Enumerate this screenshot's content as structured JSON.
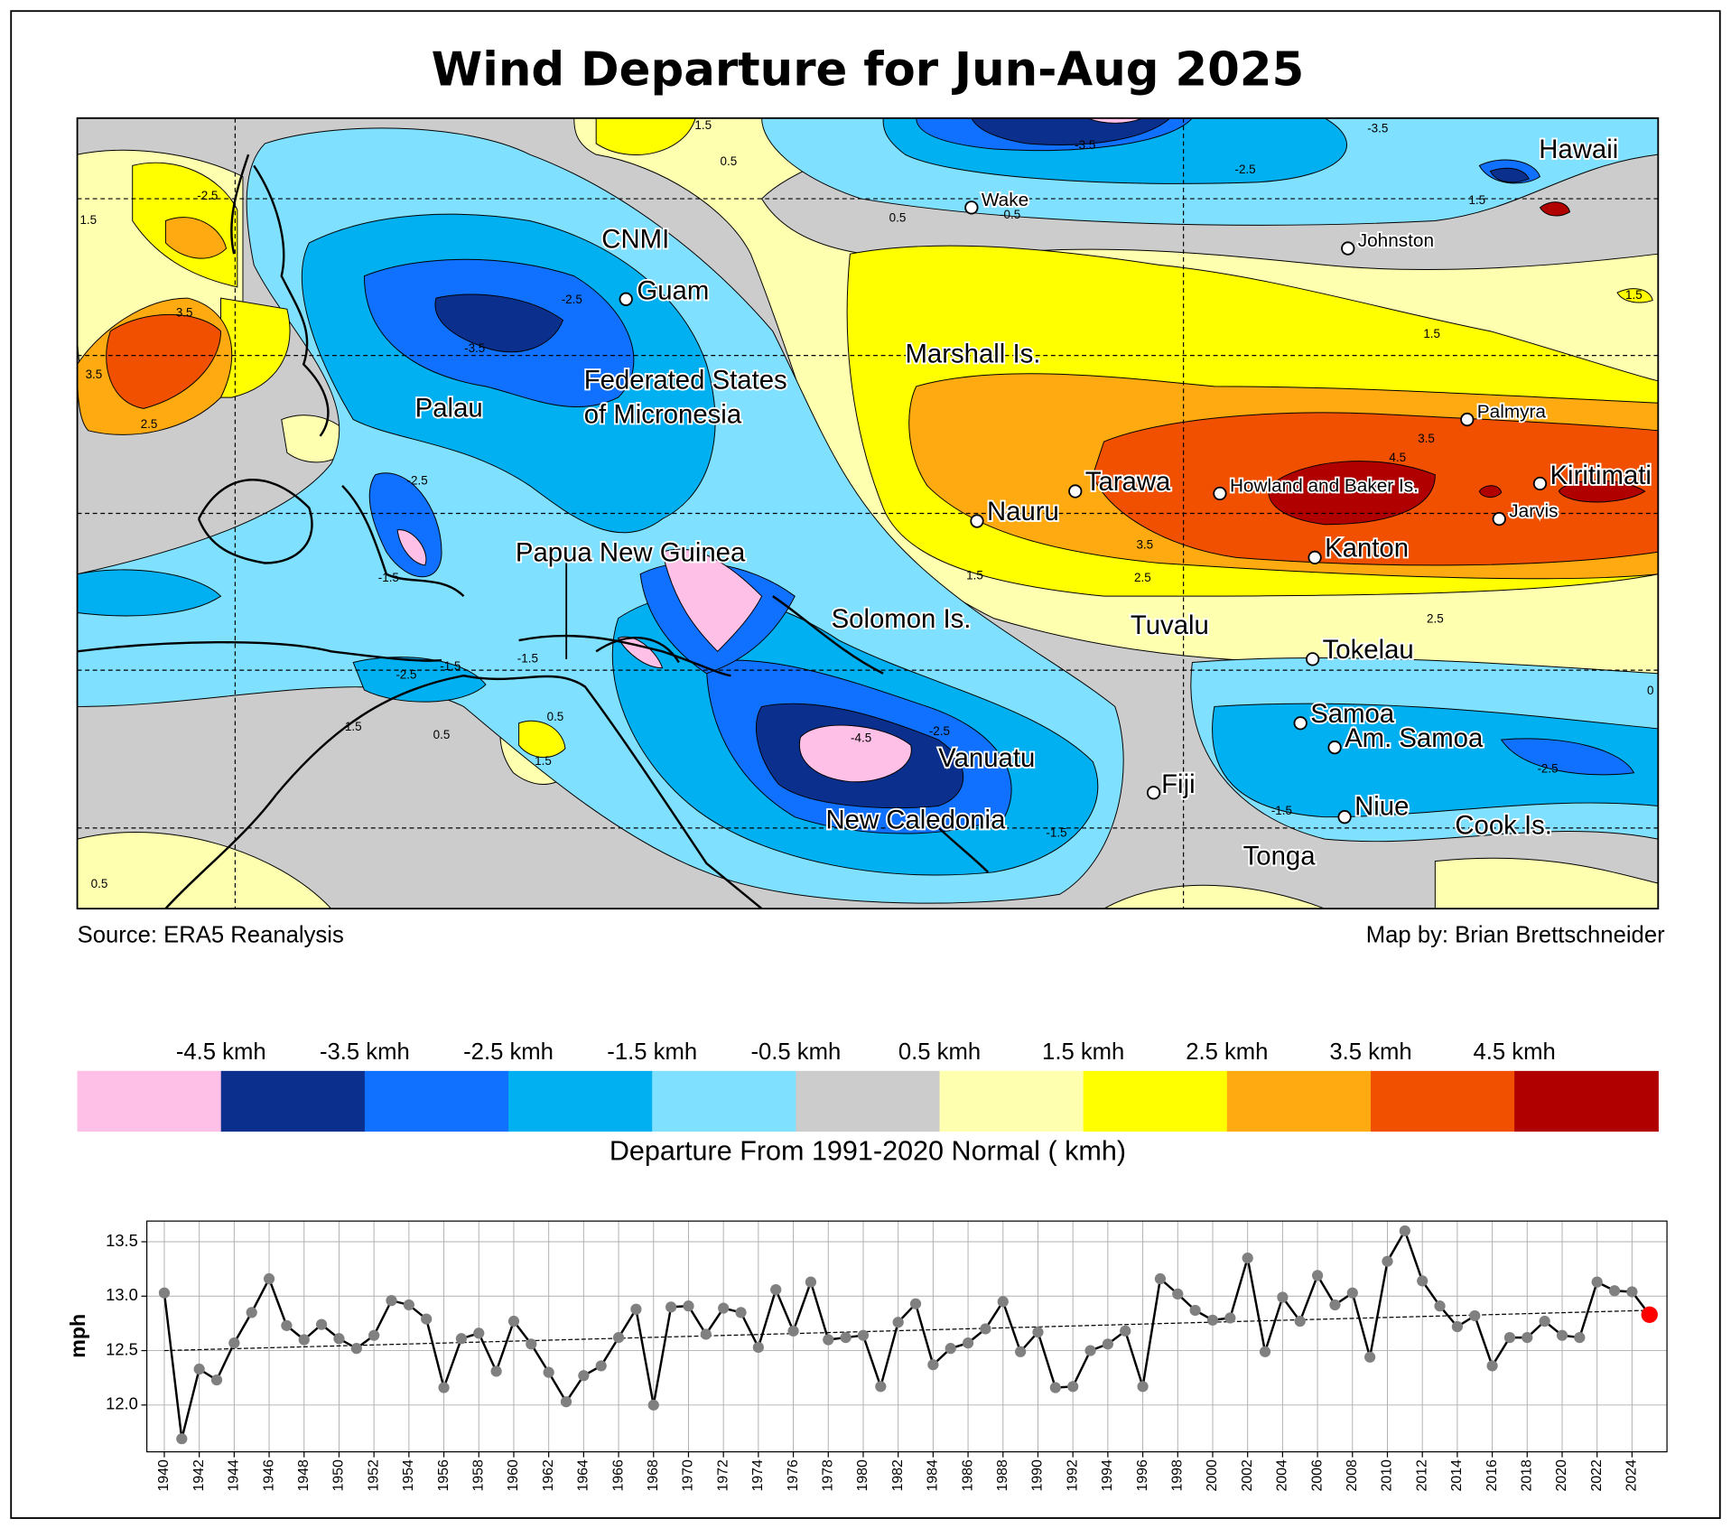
{
  "title": "Wind Departure for Jun-Aug 2025",
  "map": {
    "places": [
      "Hawaii",
      "Wake",
      "Johnston",
      "CNMI",
      "Guam",
      "Marshall Is.",
      "Palau",
      "Federated States",
      "of Micronesia",
      "Palmyra",
      "Tarawa",
      "Howland and Baker Is.",
      "Kiritimati",
      "Nauru",
      "Jarvis",
      "Kanton",
      "Papua New Guinea",
      "Solomon Is.",
      "Tuvalu",
      "Tokelau",
      "Samoa",
      "Am. Samoa",
      "Vanuatu",
      "Fiji",
      "Niue",
      "New Caledonia",
      "Cook Is.",
      "Tonga"
    ],
    "contour_labels": [
      1.5,
      0.5,
      -2.5,
      1.5,
      3.5,
      3.5,
      2.5,
      -3.5,
      -2.5,
      -3.5,
      -3.5,
      -2.5,
      1.5,
      0.5,
      -0.5,
      1.5,
      1.5,
      3.5,
      4.5,
      3.5,
      2.5,
      1.5,
      2.5,
      0,
      -1.5,
      -1.5,
      -2.5,
      -2.5,
      -1.5,
      -4.5,
      -2.5,
      -1.5,
      -1.5,
      -2.5,
      0.5,
      0.5,
      1.5,
      1.5,
      0.5
    ],
    "source": "Source: ERA5 Reanalysis",
    "credit": "Map by: Brian Brettschneider"
  },
  "colorbar": {
    "labels": [
      "-4.5 kmh",
      "-3.5 kmh",
      "-2.5 kmh",
      "-1.5 kmh",
      "-0.5 kmh",
      "0.5 kmh",
      "1.5 kmh",
      "2.5 kmh",
      "3.5 kmh",
      "4.5 kmh"
    ],
    "colors": [
      "#ffc0e8",
      "#0a2f8c",
      "#1070ff",
      "#00b0f0",
      "#7fe0ff",
      "#cccccc",
      "#ffffb0",
      "#ffff00",
      "#ffaa10",
      "#f05000",
      "#b00000"
    ],
    "label": "Departure From 1991-2020 Normal ( kmh)"
  },
  "chart_data": {
    "type": "line",
    "ylabel": "mph",
    "x": [
      1940,
      1941,
      1942,
      1943,
      1944,
      1945,
      1946,
      1947,
      1948,
      1949,
      1950,
      1951,
      1952,
      1953,
      1954,
      1955,
      1956,
      1957,
      1958,
      1959,
      1960,
      1961,
      1962,
      1963,
      1964,
      1965,
      1966,
      1967,
      1968,
      1969,
      1970,
      1971,
      1972,
      1973,
      1974,
      1975,
      1976,
      1977,
      1978,
      1979,
      1980,
      1981,
      1982,
      1983,
      1984,
      1985,
      1986,
      1987,
      1988,
      1989,
      1990,
      1991,
      1992,
      1993,
      1994,
      1995,
      1996,
      1997,
      1998,
      1999,
      2000,
      2001,
      2002,
      2003,
      2004,
      2005,
      2006,
      2007,
      2008,
      2009,
      2010,
      2011,
      2012,
      2013,
      2014,
      2015,
      2016,
      2017,
      2018,
      2019,
      2020,
      2021,
      2022,
      2023,
      2024,
      2025
    ],
    "values": [
      13.03,
      11.69,
      12.33,
      12.23,
      12.57,
      12.85,
      13.16,
      12.73,
      12.6,
      12.74,
      12.61,
      12.52,
      12.64,
      12.96,
      12.92,
      12.79,
      12.16,
      12.61,
      12.66,
      12.31,
      12.77,
      12.56,
      12.3,
      12.03,
      12.27,
      12.36,
      12.62,
      12.88,
      12.0,
      12.9,
      12.91,
      12.65,
      12.89,
      12.85,
      12.53,
      13.06,
      12.68,
      13.13,
      12.6,
      12.62,
      12.64,
      12.17,
      12.76,
      12.93,
      12.37,
      12.52,
      12.57,
      12.7,
      12.95,
      12.49,
      12.67,
      12.16,
      12.17,
      12.5,
      12.56,
      12.68,
      12.17,
      13.16,
      13.02,
      12.87,
      12.78,
      12.8,
      13.35,
      12.49,
      12.99,
      12.77,
      13.19,
      12.92,
      13.03,
      12.44,
      13.32,
      13.6,
      13.14,
      12.91,
      12.72,
      12.82,
      12.36,
      12.62,
      12.62,
      12.77,
      12.64,
      12.62,
      13.13,
      13.05,
      13.04,
      12.83
    ],
    "color": "#000000",
    "marker_color": "#808080",
    "highlight_color": "#ff0000",
    "trend": {
      "x": [
        1940,
        2025
      ],
      "values": [
        12.5,
        12.87
      ]
    },
    "xlim": [
      1939,
      2026
    ],
    "ylim": [
      11.57,
      13.69
    ],
    "xticks": [
      1940,
      1942,
      1944,
      1946,
      1948,
      1950,
      1952,
      1954,
      1956,
      1958,
      1960,
      1962,
      1964,
      1966,
      1968,
      1970,
      1972,
      1974,
      1976,
      1978,
      1980,
      1982,
      1984,
      1986,
      1988,
      1990,
      1992,
      1994,
      1996,
      1998,
      2000,
      2002,
      2004,
      2006,
      2008,
      2010,
      2012,
      2014,
      2016,
      2018,
      2020,
      2022,
      2024
    ],
    "yticks": [
      {
        "value": 12.0,
        "label": "12.0"
      },
      12.5,
      {
        "value": 13.0,
        "label": "13.0"
      },
      13.5
    ],
    "grid": true
  }
}
